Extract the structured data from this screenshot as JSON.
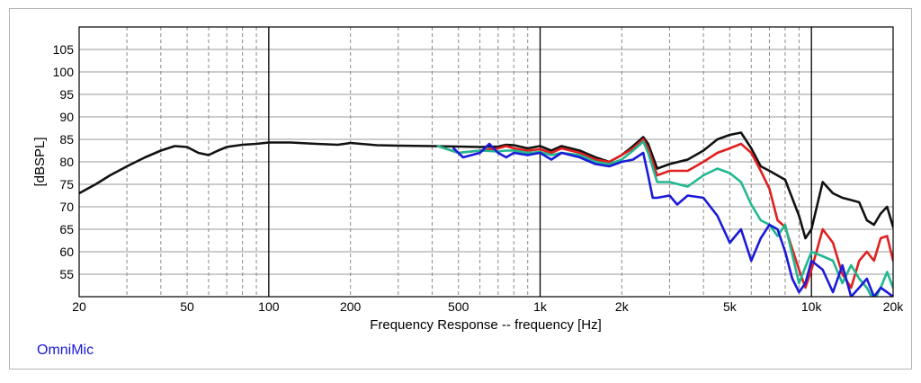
{
  "brand_label": "OmniMic",
  "chart_data": {
    "type": "line",
    "title": "",
    "xlabel": "Frequency Response -- frequency [Hz]",
    "ylabel": "[dBSPL]",
    "x_scale": "log",
    "xlim": [
      20,
      20000
    ],
    "ylim": [
      50,
      110
    ],
    "grid": true,
    "x_ticks": [
      {
        "value": 20,
        "label": "20"
      },
      {
        "value": 50,
        "label": "50"
      },
      {
        "value": 100,
        "label": "100"
      },
      {
        "value": 200,
        "label": "200"
      },
      {
        "value": 500,
        "label": "500"
      },
      {
        "value": 1000,
        "label": "1k"
      },
      {
        "value": 2000,
        "label": "2k"
      },
      {
        "value": 5000,
        "label": "5k"
      },
      {
        "value": 10000,
        "label": "10k"
      },
      {
        "value": 20000,
        "label": "20k"
      }
    ],
    "y_ticks": [
      {
        "value": 55,
        "label": "55"
      },
      {
        "value": 60,
        "label": "60"
      },
      {
        "value": 65,
        "label": "65"
      },
      {
        "value": 70,
        "label": "70"
      },
      {
        "value": 75,
        "label": "75"
      },
      {
        "value": 80,
        "label": "80"
      },
      {
        "value": 85,
        "label": "85"
      },
      {
        "value": 90,
        "label": "90"
      },
      {
        "value": 95,
        "label": "95"
      },
      {
        "value": 100,
        "label": "100"
      },
      {
        "value": 105,
        "label": "105"
      }
    ],
    "series": [
      {
        "color": "#111111",
        "x": [
          20,
          23,
          26,
          30,
          35,
          40,
          45,
          50,
          55,
          60,
          65,
          70,
          80,
          90,
          100,
          120,
          150,
          180,
          200,
          250,
          300,
          400,
          500,
          600,
          700,
          750,
          800,
          900,
          1000,
          1100,
          1200,
          1400,
          1600,
          1800,
          2000,
          2200,
          2400,
          2500,
          2700,
          3000,
          3500,
          4000,
          4500,
          5000,
          5500,
          6000,
          6500,
          7000,
          8000,
          9000,
          9500,
          10000,
          11000,
          12000,
          13000,
          14000,
          15000,
          16000,
          17000,
          18000,
          19000,
          20000
        ],
        "y": [
          73,
          75,
          77,
          79,
          81,
          82.5,
          83.5,
          83.3,
          82,
          81.5,
          82.5,
          83.3,
          83.8,
          84,
          84.3,
          84.3,
          84,
          83.8,
          84.2,
          83.7,
          83.6,
          83.5,
          83.4,
          83.3,
          83.4,
          83.8,
          83.7,
          83,
          83.5,
          82.5,
          83.5,
          82.5,
          81,
          80,
          81.5,
          83.5,
          85.5,
          84,
          78.5,
          79.5,
          80.5,
          82.5,
          85,
          86,
          86.5,
          83,
          79,
          78,
          76,
          68,
          63,
          65,
          75.5,
          73,
          72,
          71.5,
          71,
          67,
          66,
          68.5,
          70,
          65.5
        ]
      },
      {
        "color": "#e02020",
        "x": [
          420,
          500,
          600,
          700,
          750,
          800,
          900,
          1000,
          1100,
          1200,
          1400,
          1600,
          1800,
          2000,
          2200,
          2400,
          2500,
          2700,
          3000,
          3500,
          4000,
          4500,
          5000,
          5500,
          6000,
          6500,
          7000,
          7500,
          8000,
          9000,
          9500,
          10000,
          11000,
          12000,
          13000,
          14000,
          15000,
          16000,
          17000,
          18000,
          19000,
          20000
        ],
        "y": [
          83.5,
          82,
          82.5,
          83,
          83.5,
          83,
          82.5,
          82.8,
          82,
          83,
          82,
          80.5,
          80,
          81.5,
          83,
          85,
          83,
          77,
          78,
          78,
          80,
          82,
          83,
          84,
          82,
          78,
          74,
          67,
          65.5,
          56,
          52,
          56,
          65,
          62,
          55,
          52,
          58,
          60,
          58,
          63,
          63.5,
          58
        ]
      },
      {
        "color": "#20b890",
        "x": [
          420,
          500,
          600,
          700,
          750,
          800,
          900,
          1000,
          1100,
          1200,
          1400,
          1600,
          1800,
          2000,
          2200,
          2400,
          2500,
          2700,
          3000,
          3500,
          4000,
          4500,
          5000,
          5500,
          6000,
          6500,
          7000,
          7500,
          8000,
          9000,
          10000,
          11000,
          12000,
          13000,
          14000,
          15000,
          16000,
          17000,
          18000,
          19000,
          20000
        ],
        "y": [
          83.5,
          82,
          82.5,
          82.3,
          82.5,
          82.5,
          82,
          82.2,
          81.5,
          82,
          81.5,
          80,
          79.5,
          80.5,
          82.5,
          84.5,
          82,
          75.5,
          75.5,
          74.5,
          77,
          78.5,
          77.5,
          75.5,
          70.5,
          67,
          66,
          63.5,
          66,
          53,
          60,
          59,
          58,
          53,
          57,
          54,
          52,
          49,
          52,
          55.5,
          52
        ]
      },
      {
        "color": "#1a1ad8",
        "x": [
          480,
          520,
          600,
          650,
          700,
          750,
          800,
          900,
          1000,
          1100,
          1200,
          1400,
          1600,
          1800,
          2000,
          2200,
          2400,
          2500,
          2600,
          2700,
          3000,
          3200,
          3500,
          4000,
          4500,
          5000,
          5500,
          6000,
          6500,
          7000,
          7500,
          8000,
          8500,
          9000,
          9500,
          10000,
          11000,
          12000,
          13000,
          14000,
          15000,
          16000,
          17000,
          18000,
          19000,
          20000
        ],
        "y": [
          83,
          81,
          82,
          84,
          82,
          81,
          82,
          81.5,
          82,
          80.5,
          82,
          81,
          79.5,
          79,
          80,
          80.5,
          82,
          77,
          72,
          72,
          72.5,
          70.5,
          72.5,
          72,
          68,
          62,
          65,
          58,
          63,
          66,
          65,
          60,
          54,
          51,
          53,
          58,
          56,
          51,
          57,
          50,
          52,
          54,
          50,
          52,
          51,
          50
        ]
      }
    ]
  }
}
